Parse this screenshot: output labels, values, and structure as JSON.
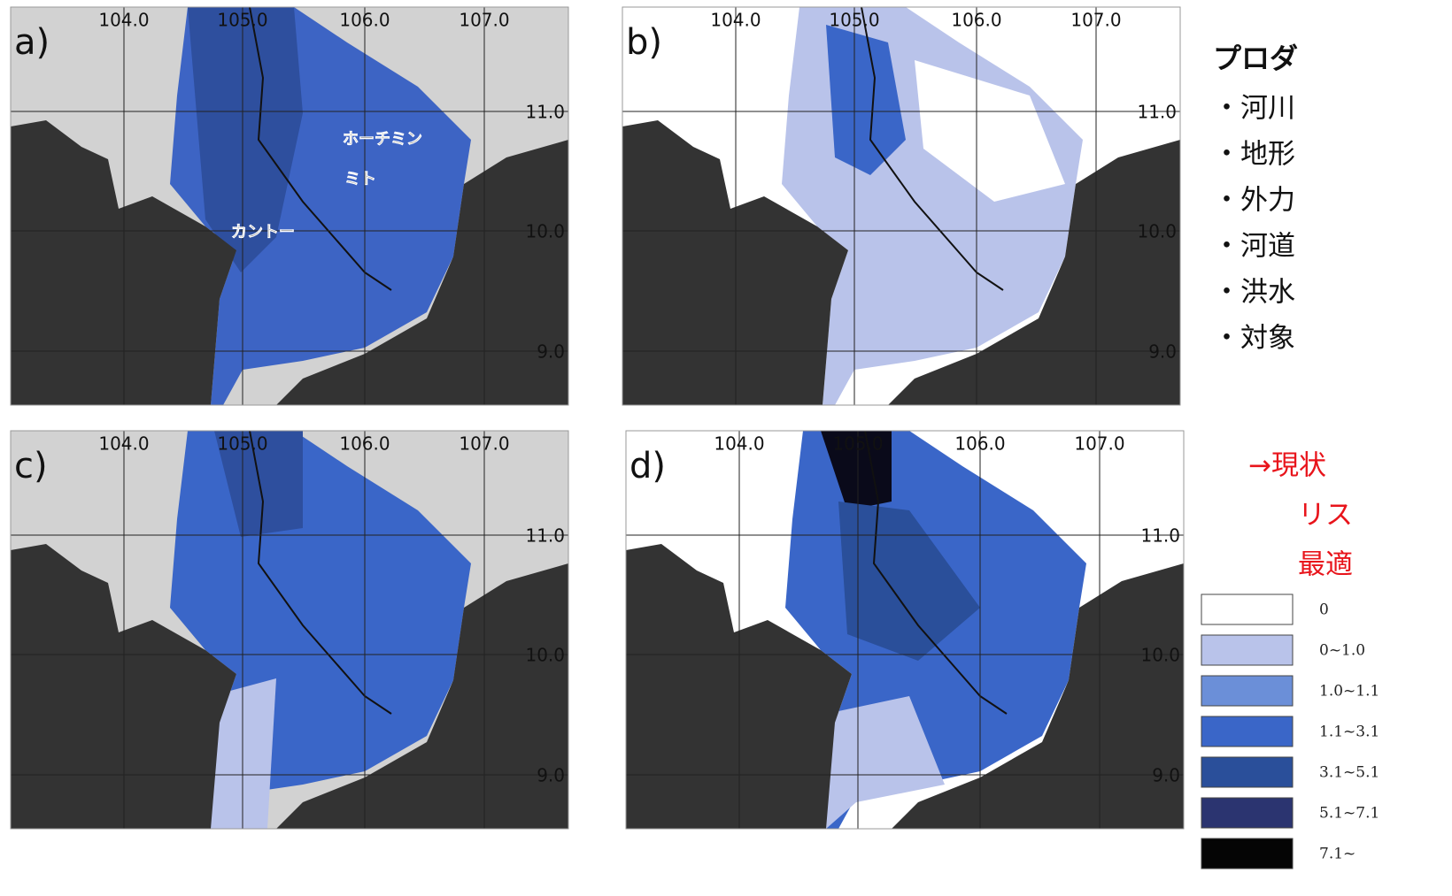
{
  "panels": [
    {
      "label": "a)",
      "lon_labels": [
        "104.0",
        "105.0",
        "106.0",
        "107.0"
      ],
      "lat_labels": [
        "11.0",
        "10.0",
        "9.0"
      ],
      "place_names": [
        "ホーチミン",
        "ミト",
        "カントー"
      ]
    },
    {
      "label": "b)",
      "lon_labels": [
        "104.0",
        "105.0",
        "106.0",
        "107.0"
      ],
      "lat_labels": [
        "11.0",
        "10.0",
        "9.0"
      ]
    },
    {
      "label": "c)",
      "lon_labels": [
        "104.0",
        "105.0",
        "106.0",
        "107.0"
      ],
      "lat_labels": [
        "11.0",
        "10.0",
        "9.0"
      ]
    },
    {
      "label": "d)",
      "lon_labels": [
        "104.0",
        "105.0",
        "106.0",
        "107.0"
      ],
      "lat_labels": [
        "11.0",
        "10.0",
        "9.0"
      ]
    }
  ],
  "notes": {
    "heading": "プロダ",
    "bullets": [
      "・河川",
      "・地形",
      "・外力",
      "・河道",
      "・洪水",
      "・対象"
    ],
    "conclusion": [
      "→現状",
      "リス",
      "最適"
    ]
  },
  "legend": [
    {
      "label": "0",
      "color": "#ffffff"
    },
    {
      "label": "0~1.0",
      "color": "#b9c3ea"
    },
    {
      "label": "1.0~1.1",
      "color": "#6b8fd8"
    },
    {
      "label": "1.1~3.1",
      "color": "#3a66c8"
    },
    {
      "label": "3.1~5.1",
      "color": "#2a4f9a"
    },
    {
      "label": "5.1~7.1",
      "color": "#2b3470"
    },
    {
      "label": "7.1~",
      "color": "#050505"
    }
  ]
}
